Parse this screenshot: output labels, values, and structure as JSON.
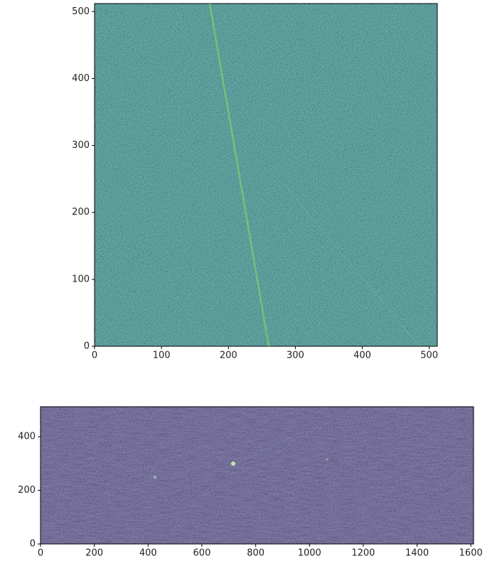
{
  "chart_data": [
    {
      "type": "image",
      "color": "#2a8c8a",
      "xlim": [
        0,
        512
      ],
      "ylim": [
        0,
        512
      ],
      "xticks": [
        0,
        100,
        200,
        300,
        400,
        500
      ],
      "yticks": [
        0,
        100,
        200,
        300,
        400,
        500
      ]
    },
    {
      "type": "image",
      "color": "#443a84",
      "xlim": [
        0,
        1610
      ],
      "ylim": [
        0,
        512
      ],
      "xticks": [
        0,
        200,
        400,
        600,
        800,
        1000,
        1200,
        1400,
        1600
      ],
      "yticks": [
        0,
        200,
        400
      ]
    }
  ]
}
